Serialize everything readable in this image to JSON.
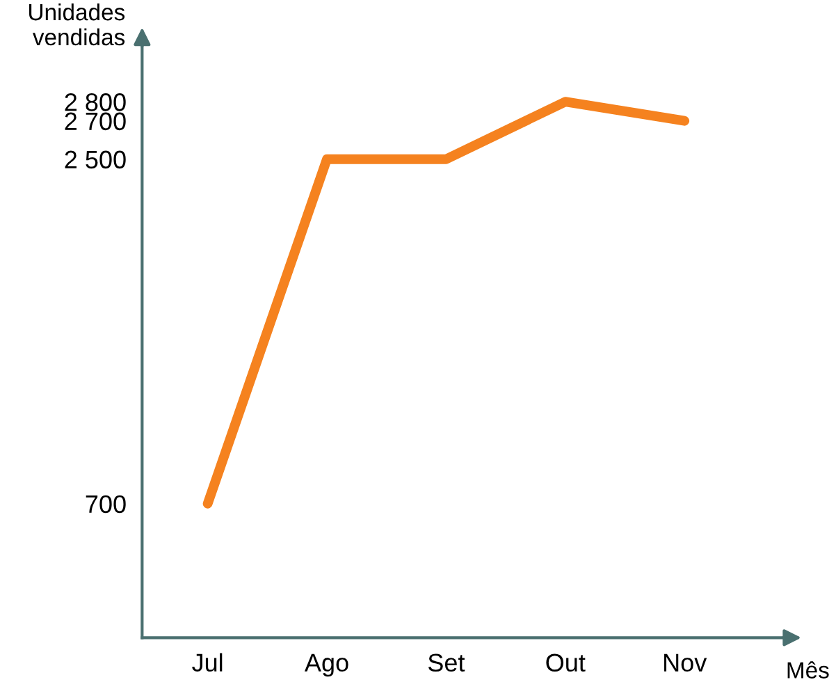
{
  "chart_data": {
    "type": "line",
    "xlabel": "Mês",
    "ylabel": "Unidades vendidas",
    "categories": [
      "Jul",
      "Ago",
      "Set",
      "Out",
      "Nov"
    ],
    "series": [
      {
        "color": "#f5821f",
        "values": [
          700,
          2500,
          2500,
          2800,
          2700
        ]
      }
    ],
    "ylim": [
      0,
      3100
    ],
    "yticks": [
      {
        "value": 700,
        "label": "700"
      },
      {
        "value": 2500,
        "label": "2 500"
      },
      {
        "value": 2700,
        "label": "2 700"
      },
      {
        "value": 2800,
        "label": "2 800"
      }
    ],
    "grid": false,
    "legend": false,
    "marker": "none",
    "line_style": "solid"
  }
}
